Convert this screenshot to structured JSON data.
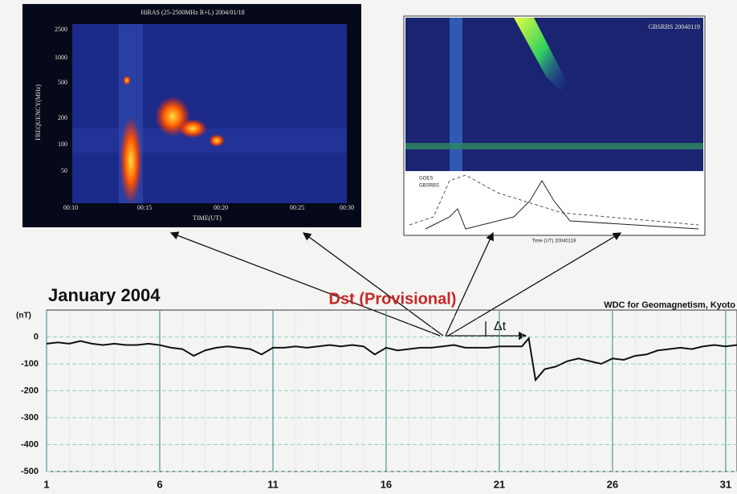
{
  "figures": [
    {
      "title": "HiRAS (25-2500MHz R+L)   2004/01/18",
      "y_label": "FREQUENCY(MHz)",
      "x_label": "TIME(UT)",
      "y_tick_labels": [
        "2500",
        "1000",
        "500",
        "200",
        "100",
        "50"
      ],
      "x_tick_labels": [
        "00:10",
        "00:15",
        "00:20",
        "00:25",
        "00:30"
      ]
    },
    {
      "title": "GBSRBS 20040119",
      "legend": [
        "GOES",
        "GBSRBS"
      ],
      "x_label": "Time (UT) 20040119"
    }
  ],
  "chart_data": {
    "type": "line",
    "title": "January 2004",
    "subtitle": "Dst (Provisional)",
    "source": "WDC for Geomagnetism, Kyoto",
    "y_label": "(nT)",
    "annotation": "Δt",
    "series": [
      {
        "name": "Dst",
        "color": "#111111",
        "x": [
          1,
          1.5,
          2,
          2.5,
          3,
          3.5,
          4,
          4.5,
          5,
          5.5,
          6,
          6.5,
          7,
          7.5,
          8,
          8.5,
          9,
          9.5,
          10,
          10.5,
          11,
          11.5,
          12,
          12.5,
          13,
          13.5,
          14,
          14.5,
          15,
          15.5,
          16,
          16.5,
          17,
          17.5,
          18,
          18.5,
          19,
          19.5,
          20,
          20.5,
          21,
          21.5,
          22,
          22.3,
          22.6,
          23,
          23.5,
          24,
          24.5,
          25,
          25.5,
          26,
          26.5,
          27,
          27.5,
          28,
          28.5,
          29,
          29.5,
          30,
          30.5,
          31,
          31.5
        ],
        "values": [
          -25,
          -20,
          -25,
          -15,
          -25,
          -30,
          -25,
          -30,
          -30,
          -25,
          -30,
          -40,
          -45,
          -70,
          -50,
          -40,
          -35,
          -40,
          -45,
          -65,
          -40,
          -40,
          -35,
          -40,
          -35,
          -30,
          -35,
          -30,
          -35,
          -65,
          -40,
          -50,
          -45,
          -40,
          -40,
          -35,
          -30,
          -40,
          -40,
          -40,
          -35,
          -35,
          -35,
          -5,
          -160,
          -120,
          -110,
          -90,
          -80,
          -90,
          -100,
          -80,
          -85,
          -70,
          -65,
          -50,
          -45,
          -40,
          -45,
          -35,
          -30,
          -35,
          -30
        ]
      }
    ],
    "xlim": [
      1,
      31.5
    ],
    "xticks": [
      1,
      6,
      11,
      16,
      21,
      26,
      31
    ],
    "ylim": [
      -500,
      100
    ],
    "yticks": [
      0,
      -100,
      -200,
      -300,
      -400,
      -500
    ],
    "grid": true
  }
}
